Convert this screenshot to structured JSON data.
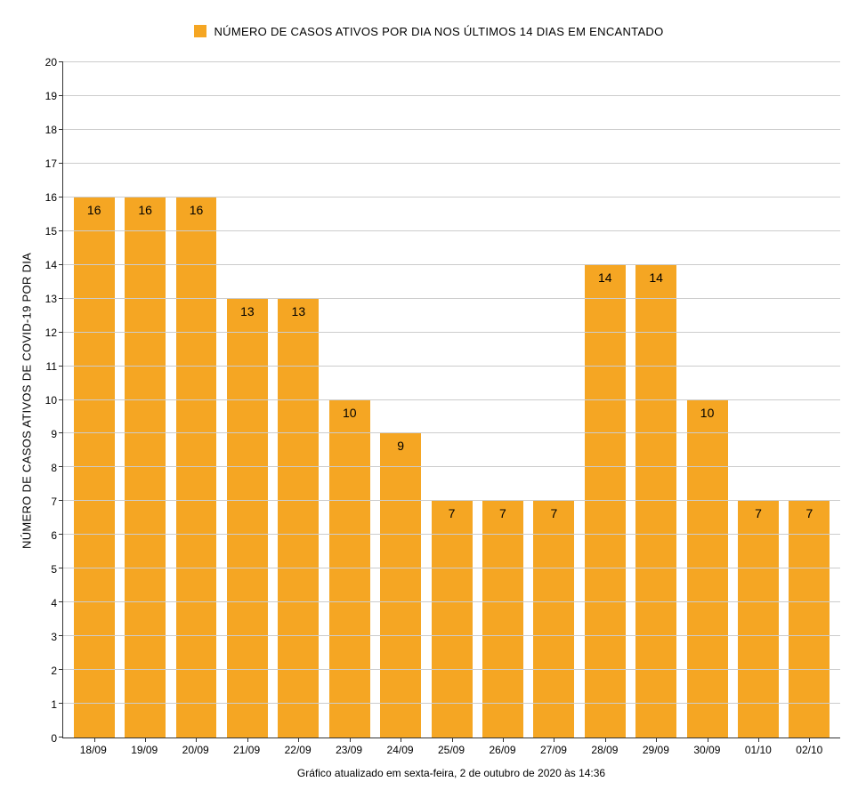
{
  "chart": {
    "type": "bar",
    "legend_label": "NÚMERO DE CASOS ATIVOS POR DIA NOS ÚLTIMOS 14 DIAS EM ENCANTADO",
    "y_axis_label": "NÚMERO DE CASOS ATIVOS DE COVID-19 POR DIA",
    "footer_text": "Gráfico atualizado em sexta-feira, 2 de outubro de 2020 às 14:36",
    "categories": [
      "18/09",
      "19/09",
      "20/09",
      "21/09",
      "22/09",
      "23/09",
      "24/09",
      "25/09",
      "26/09",
      "27/09",
      "28/09",
      "29/09",
      "30/09",
      "01/10",
      "02/10"
    ],
    "values": [
      16,
      16,
      16,
      13,
      13,
      10,
      9,
      7,
      7,
      7,
      14,
      14,
      10,
      7,
      7
    ],
    "bar_color": "#f5a623",
    "background_color": "#ffffff",
    "grid_color": "#cccccc",
    "axis_color": "#333333",
    "text_color": "#000000",
    "ylim": [
      0,
      20
    ],
    "ytick_step": 1,
    "yticks": [
      0,
      1,
      2,
      3,
      4,
      5,
      6,
      7,
      8,
      9,
      10,
      11,
      12,
      13,
      14,
      15,
      16,
      17,
      18,
      19,
      20
    ],
    "bar_width_pct": 80,
    "title_fontsize": 13,
    "label_fontsize": 13,
    "tick_fontsize": 12,
    "value_fontsize": 14
  }
}
